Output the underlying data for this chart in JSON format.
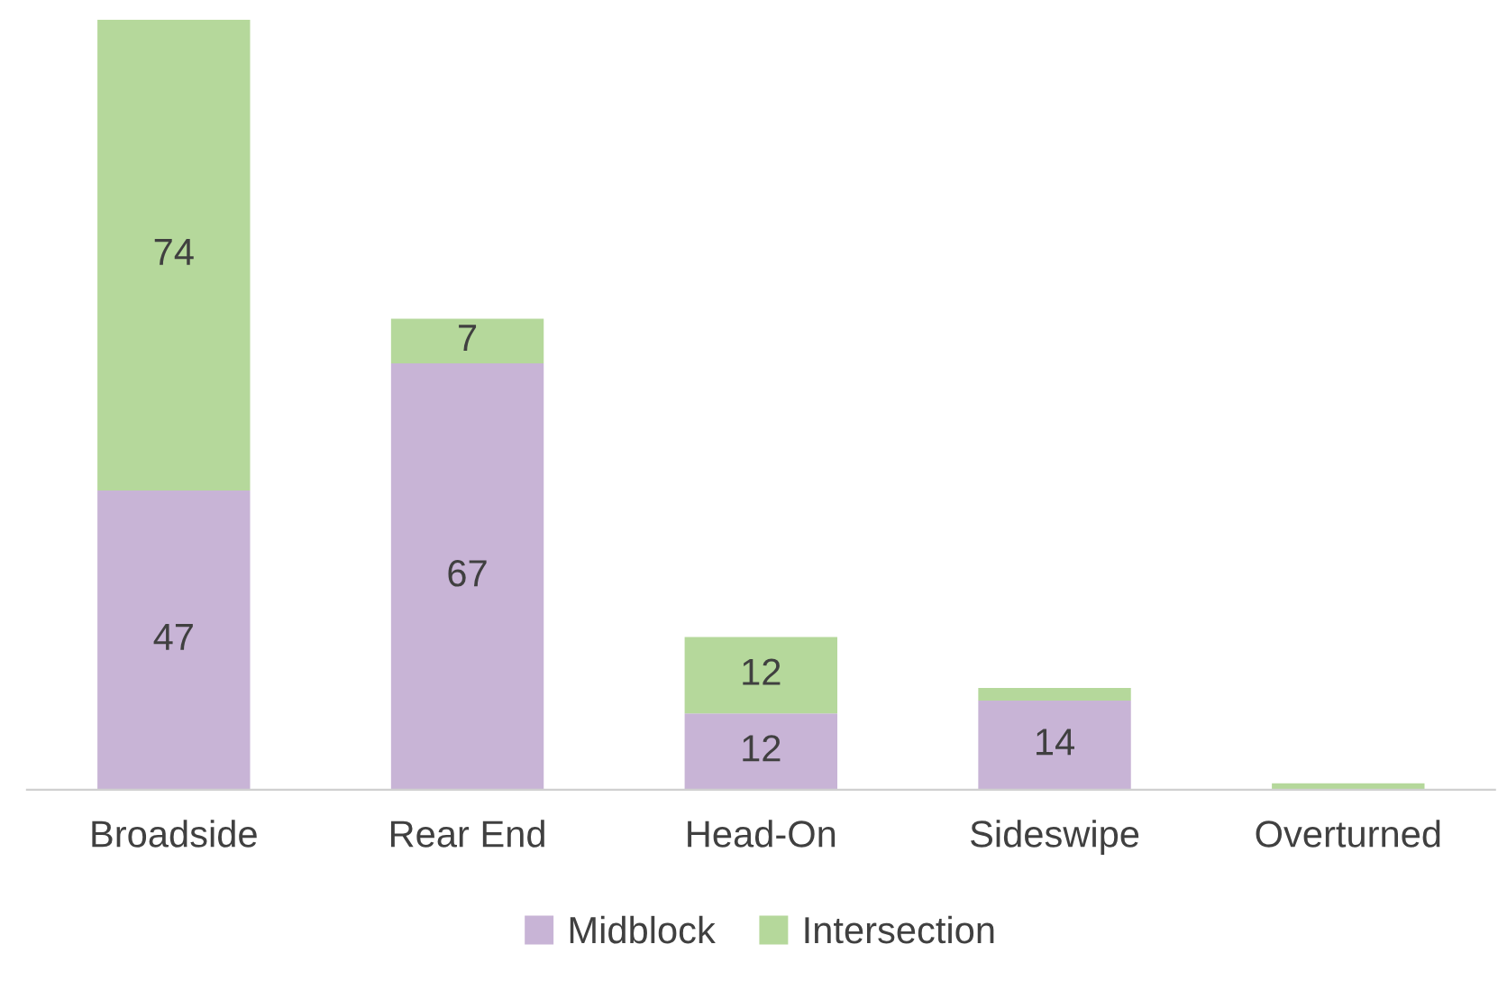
{
  "chart_data": {
    "type": "bar",
    "stacked": true,
    "categories": [
      "Broadside",
      "Rear End",
      "Head-On",
      "Sideswipe",
      "Overturned"
    ],
    "series": [
      {
        "name": "Midblock",
        "color": "#c8b4d6",
        "values": [
          47,
          67,
          12,
          14,
          0
        ],
        "value_labels": [
          "47",
          "67",
          "12",
          "14",
          null
        ]
      },
      {
        "name": "Intersection",
        "color": "#b5d89b",
        "values": [
          74,
          7,
          12,
          2,
          1
        ],
        "value_labels": [
          "74",
          "7",
          "12",
          null,
          null
        ]
      }
    ],
    "legend": "bottom",
    "grid": false
  }
}
